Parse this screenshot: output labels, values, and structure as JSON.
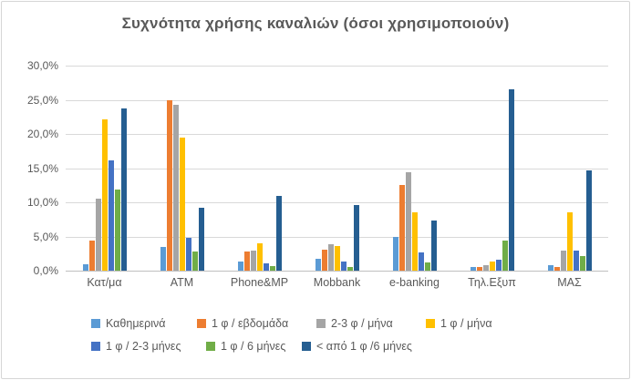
{
  "title": "Συχνότητα χρήσης καναλιών (όσοι χρησιμοποιούν)",
  "chart_data": {
    "type": "bar",
    "title": "Συχνότητα χρήσης καναλιών (όσοι χρησιμοποιούν)",
    "categories": [
      "Κατ/μα",
      "ATM",
      "Phone&MP",
      "Mobbank",
      "e-banking",
      "Τηλ.Εξυπ",
      "ΜΑΣ"
    ],
    "series": [
      {
        "name": "Καθημερινά",
        "color": "#5B9BD5",
        "values": [
          1.0,
          3.5,
          1.3,
          1.8,
          5.0,
          0.5,
          0.8
        ]
      },
      {
        "name": "1 φ / εβδομάδα",
        "color": "#ED7D31",
        "values": [
          4.4,
          25.0,
          2.8,
          3.1,
          12.5,
          0.5,
          0.6
        ]
      },
      {
        "name": "2-3 φ / μήνα",
        "color": "#A5A5A5",
        "values": [
          10.6,
          24.3,
          3.0,
          3.9,
          14.4,
          0.8,
          3.0
        ]
      },
      {
        "name": "1 φ / μήνα",
        "color": "#FFC000",
        "values": [
          22.2,
          19.5,
          4.0,
          3.6,
          8.6,
          1.3,
          8.5
        ]
      },
      {
        "name": "1 φ / 2-3 μήνες",
        "color": "#4472C4",
        "values": [
          16.1,
          4.8,
          1.1,
          1.4,
          2.7,
          1.6,
          3.0
        ]
      },
      {
        "name": "1 φ / 6 μήνες",
        "color": "#70AD47",
        "values": [
          11.9,
          2.8,
          0.7,
          0.6,
          1.2,
          4.4,
          2.1
        ]
      },
      {
        "name": "< από 1 φ /6 μήνες",
        "color": "#255E91",
        "values": [
          23.7,
          9.2,
          10.9,
          9.6,
          7.4,
          26.5,
          14.7
        ]
      }
    ],
    "y_tick_labels": [
      "30,0%",
      "25,0%",
      "20,0%",
      "15,0%",
      "10,0%",
      "5,0%",
      "0,0%"
    ],
    "ylim": [
      0,
      30
    ],
    "grid": true,
    "legend_position": "bottom",
    "legend_rows": [
      [
        0,
        1,
        2,
        3
      ],
      [
        4,
        5,
        6
      ]
    ]
  }
}
